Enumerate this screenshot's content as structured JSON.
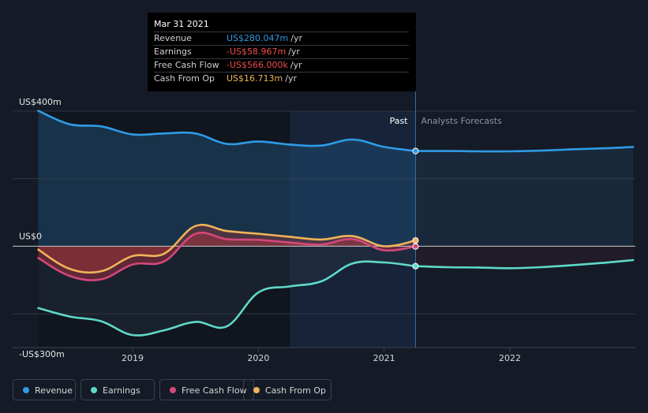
{
  "tooltip": {
    "date": "Mar 31 2021",
    "rows": [
      {
        "label": "Revenue",
        "value": "US$280.047m",
        "unit": "/yr",
        "color": "#2f9be6"
      },
      {
        "label": "Earnings",
        "value": "-US$58.967m",
        "unit": "/yr",
        "color": "#ef4b4b"
      },
      {
        "label": "Free Cash Flow",
        "value": "-US$566.000k",
        "unit": "/yr",
        "color": "#ef4b4b"
      },
      {
        "label": "Cash From Op",
        "value": "US$16.713m",
        "unit": "/yr",
        "color": "#f0b35a"
      }
    ]
  },
  "labels": {
    "past": "Past",
    "forecast": "Analysts Forecasts"
  },
  "legend": [
    {
      "label": "Revenue",
      "color": "#2f9be6"
    },
    {
      "label": "Earnings",
      "color": "#5fd9c8"
    },
    {
      "label": "Free Cash Flow",
      "color": "#d4487a"
    },
    {
      "label": "Cash From Op",
      "color": "#f0b35a"
    }
  ],
  "chart_data": {
    "type": "line",
    "title": "",
    "xlabel": "",
    "ylabel": "",
    "ylim": [
      -300,
      400
    ],
    "y_ticks": [
      {
        "value": 400,
        "label": "US$400m"
      },
      {
        "value": 0,
        "label": "US$0"
      },
      {
        "value": -300,
        "label": "-US$300m"
      }
    ],
    "x_ticks": [
      {
        "value": 2019.0,
        "label": "2019"
      },
      {
        "value": 2020.0,
        "label": "2020"
      },
      {
        "value": 2021.0,
        "label": "2021"
      },
      {
        "value": 2022.0,
        "label": "2022"
      }
    ],
    "xlim": [
      2018.12,
      2022.98
    ],
    "past_end": 2021.25,
    "highlight_start": 2020.25,
    "series": [
      {
        "name": "Revenue",
        "color": "#2f9be6",
        "x": [
          2018.25,
          2018.5,
          2018.75,
          2019.0,
          2019.25,
          2019.5,
          2019.75,
          2020.0,
          2020.25,
          2020.5,
          2020.75,
          2021.0,
          2021.25
        ],
        "values": [
          401,
          361,
          355,
          331,
          334,
          334,
          303,
          310,
          301,
          298,
          316,
          294,
          282
        ]
      },
      {
        "name": "Revenue Forecast",
        "color": "#2f9be6",
        "forecast": true,
        "x": [
          2021.25,
          2021.5,
          2021.75,
          2022.0,
          2022.25,
          2022.5,
          2022.75,
          2022.98
        ],
        "values": [
          282,
          282,
          281,
          281,
          283,
          287,
          290,
          294
        ]
      },
      {
        "name": "Earnings",
        "color": "#5fd9c8",
        "x": [
          2018.25,
          2018.5,
          2018.75,
          2019.0,
          2019.25,
          2019.5,
          2019.75,
          2020.0,
          2020.25,
          2020.5,
          2020.75,
          2021.0,
          2021.25
        ],
        "values": [
          -183,
          -208,
          -222,
          -263,
          -249,
          -224,
          -237,
          -137,
          -119,
          -104,
          -51,
          -48,
          -59
        ]
      },
      {
        "name": "Earnings Forecast",
        "color": "#5fd9c8",
        "forecast": true,
        "x": [
          2021.25,
          2021.5,
          2021.75,
          2022.0,
          2022.25,
          2022.5,
          2022.75,
          2022.98
        ],
        "values": [
          -59,
          -62,
          -63,
          -65,
          -62,
          -56,
          -49,
          -41
        ]
      },
      {
        "name": "Free Cash Flow",
        "color": "#d4487a",
        "x": [
          2018.25,
          2018.5,
          2018.75,
          2019.0,
          2019.25,
          2019.5,
          2019.75,
          2020.0,
          2020.25,
          2020.5,
          2020.75,
          2021.0,
          2021.25
        ],
        "values": [
          -35,
          -88,
          -98,
          -54,
          -45,
          37,
          21,
          19,
          11,
          5,
          21,
          -12,
          -0.566
        ]
      },
      {
        "name": "Cash From Op",
        "color": "#f0b35a",
        "x": [
          2018.25,
          2018.5,
          2018.75,
          2019.0,
          2019.25,
          2019.5,
          2019.75,
          2020.0,
          2020.25,
          2020.5,
          2020.75,
          2021.0,
          2021.25
        ],
        "values": [
          -10,
          -67,
          -74,
          -29,
          -22,
          60,
          45,
          37,
          28,
          20,
          30,
          0,
          17
        ]
      }
    ]
  }
}
